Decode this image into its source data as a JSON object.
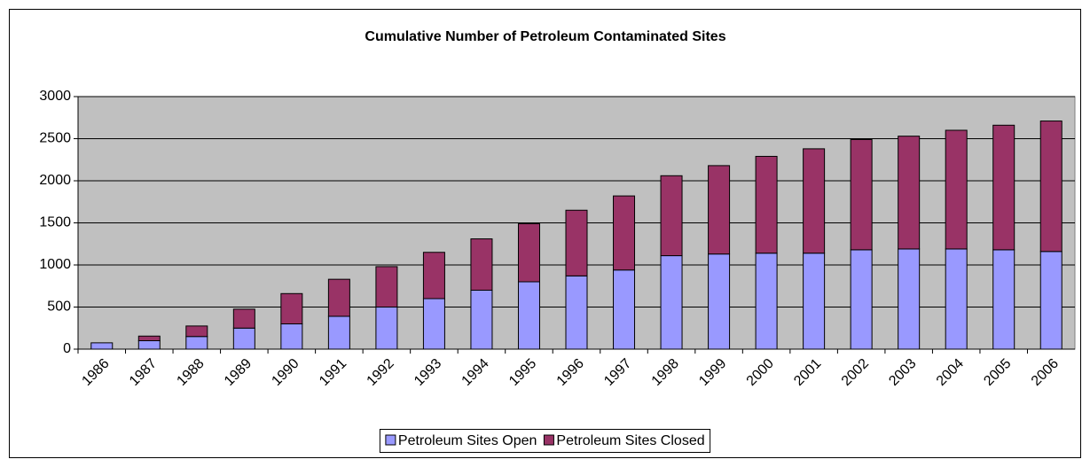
{
  "chart_data": {
    "type": "stacked_bar",
    "title": "Cumulative Number of Petroleum Contaminated Sites",
    "categories": [
      "1986",
      "1987",
      "1988",
      "1989",
      "1990",
      "1991",
      "1992",
      "1993",
      "1994",
      "1995",
      "1996",
      "1997",
      "1998",
      "1999",
      "2000",
      "2001",
      "2002",
      "2003",
      "2004",
      "2005",
      "2006"
    ],
    "series": [
      {
        "name": "Petroleum Sites Open",
        "color": "#9999ff",
        "values": [
          75,
          100,
          150,
          250,
          300,
          390,
          500,
          600,
          700,
          800,
          870,
          940,
          1110,
          1130,
          1140,
          1140,
          1180,
          1190,
          1190,
          1180,
          1160
        ]
      },
      {
        "name": "Petroleum Sites Closed",
        "color": "#993366",
        "values": [
          0,
          55,
          125,
          225,
          360,
          440,
          480,
          550,
          610,
          690,
          780,
          880,
          950,
          1050,
          1150,
          1240,
          1310,
          1340,
          1410,
          1480,
          1550
        ]
      }
    ],
    "ylim": [
      0,
      3000
    ],
    "yticks": [
      0,
      500,
      1000,
      1500,
      2000,
      2500,
      3000
    ],
    "grid": true,
    "legend": "bottom",
    "plot_background": "#c0c0c0"
  }
}
